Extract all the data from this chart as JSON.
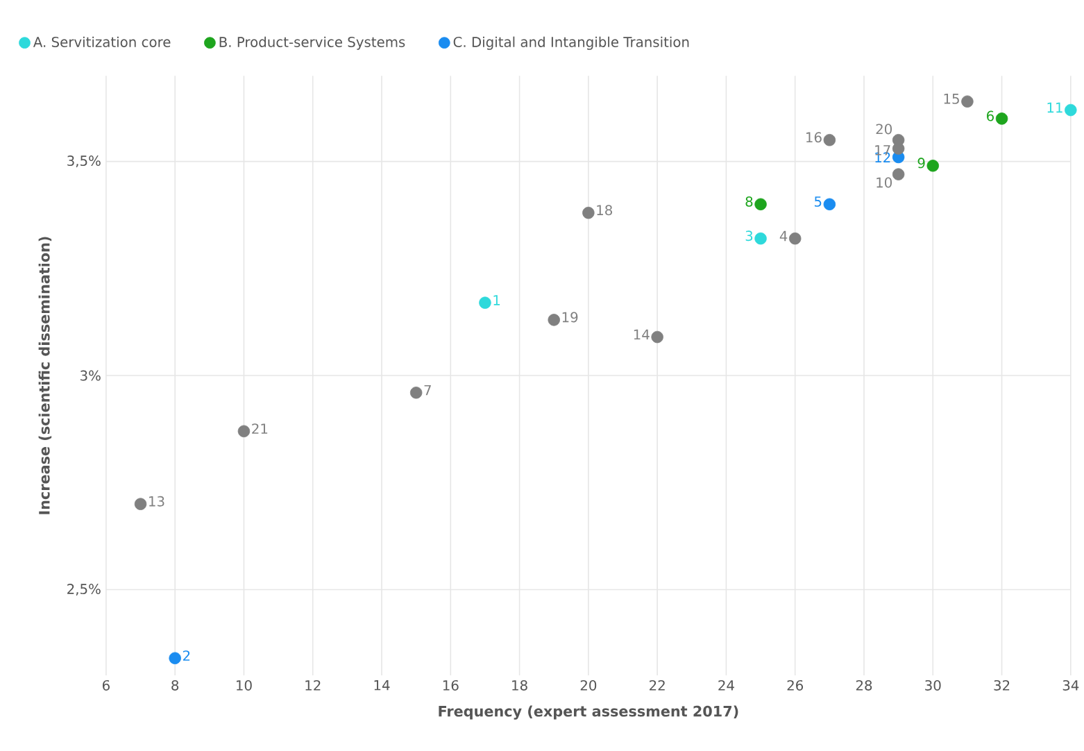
{
  "chart_data": {
    "type": "scatter",
    "xlabel": "Frequency (expert assessment 2017)",
    "ylabel": "Increase (scientific dissemination)",
    "xlim": [
      6,
      34
    ],
    "xticks": [
      6,
      8,
      10,
      12,
      14,
      16,
      18,
      20,
      22,
      24,
      26,
      28,
      30,
      32,
      34
    ],
    "ylim": [
      2.3,
      3.7
    ],
    "yticks": [
      {
        "value": 2.5,
        "label": "2,5%"
      },
      {
        "value": 3,
        "label": "3%"
      },
      {
        "value": 3.5,
        "label": "3,5%"
      }
    ],
    "grid": true,
    "legend": "top left",
    "marker": "circle",
    "series": [
      {
        "name": "A. Servitization core",
        "color": "#2ed9db",
        "x": [
          17,
          25,
          34
        ],
        "values": [
          3.17,
          3.32,
          3.62
        ]
      },
      {
        "name": "B. Product-service Systems",
        "color": "#1ea51e",
        "x": [
          32,
          25,
          30
        ],
        "values": [
          3.6,
          3.4,
          3.49
        ]
      },
      {
        "name": "C. Digital and Intangible Transition",
        "color": "#1a8cf0",
        "x": [
          8,
          27,
          29
        ],
        "values": [
          2.34,
          3.4,
          3.51
        ]
      },
      {
        "color": "#808080",
        "x": [
          26,
          15,
          29,
          7,
          22,
          31,
          27,
          29,
          20,
          19,
          29,
          10
        ],
        "values": [
          3.32,
          2.96,
          3.47,
          2.7,
          3.09,
          3.64,
          3.55,
          3.53,
          3.38,
          3.13,
          3.55,
          2.87
        ]
      }
    ],
    "annotations": [
      {
        "text": "1",
        "x": 17,
        "y": 3.17
      },
      {
        "text": "2",
        "x": 8,
        "y": 2.34
      },
      {
        "text": "3",
        "x": 25,
        "y": 3.32
      },
      {
        "text": "4",
        "x": 26,
        "y": 3.32
      },
      {
        "text": "5",
        "x": 27,
        "y": 3.4
      },
      {
        "text": "6",
        "x": 32,
        "y": 3.6
      },
      {
        "text": "7",
        "x": 15,
        "y": 2.96
      },
      {
        "text": "8",
        "x": 25,
        "y": 3.4
      },
      {
        "text": "9",
        "x": 30,
        "y": 3.49
      },
      {
        "text": "10",
        "x": 29,
        "y": 3.47
      },
      {
        "text": "11",
        "x": 34,
        "y": 3.62
      },
      {
        "text": "12",
        "x": 29,
        "y": 3.51
      },
      {
        "text": "13",
        "x": 7,
        "y": 2.7
      },
      {
        "text": "14",
        "x": 22,
        "y": 3.09
      },
      {
        "text": "15",
        "x": 31,
        "y": 3.64
      },
      {
        "text": "16",
        "x": 27,
        "y": 3.55
      },
      {
        "text": "17",
        "x": 29,
        "y": 3.53
      },
      {
        "text": "18",
        "x": 20,
        "y": 3.38
      },
      {
        "text": "19",
        "x": 19,
        "y": 3.13
      },
      {
        "text": "20",
        "x": 29,
        "y": 3.55
      },
      {
        "text": "21",
        "x": 10,
        "y": 2.87
      }
    ]
  }
}
